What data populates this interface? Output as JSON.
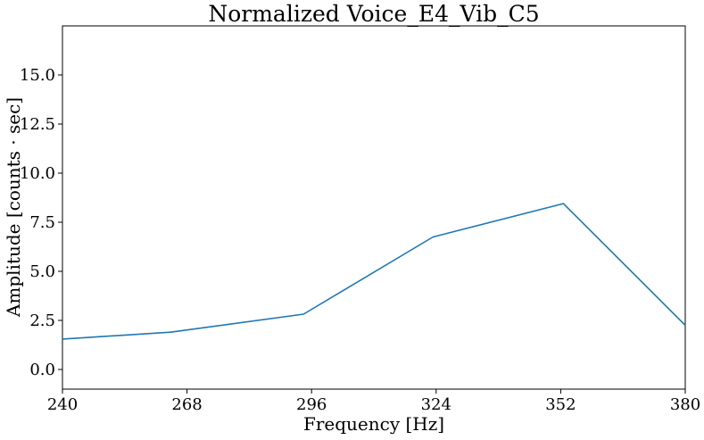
{
  "chart_data": {
    "type": "line",
    "title": "Normalized Voice_E4_Vib_C5",
    "xlabel": "Frequency [Hz]",
    "ylabel": "Amplitude [counts · sec]",
    "xlim": [
      240,
      380
    ],
    "ylim": [
      -1.0,
      17.5
    ],
    "x_ticks": [
      240,
      268,
      296,
      324,
      352,
      380
    ],
    "y_ticks": [
      0.0,
      2.5,
      5.0,
      7.5,
      10.0,
      12.5,
      15.0
    ],
    "x_tick_labels": [
      "240",
      "268",
      "296",
      "324",
      "352",
      "380"
    ],
    "y_tick_labels": [
      "0.0",
      "2.5",
      "5.0",
      "7.5",
      "10.0",
      "12.5",
      "15.0"
    ],
    "grid": false,
    "series": [
      {
        "color": "#1f77b4",
        "x": [
          240,
          264.3,
          294.2,
          323.3,
          352.6,
          380
        ],
        "y": [
          1.55,
          1.9,
          2.82,
          6.75,
          8.45,
          2.25
        ]
      }
    ]
  }
}
